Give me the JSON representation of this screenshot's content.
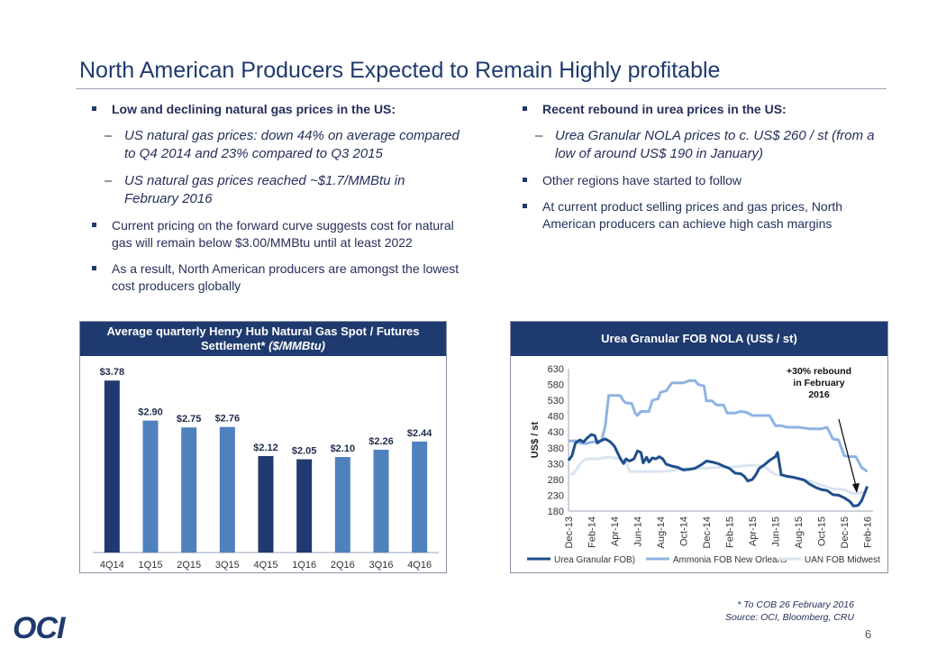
{
  "title": "North American Producers Expected to Remain Highly profitable",
  "left": {
    "b1": "Low and declining natural gas prices in the US:",
    "s1": "US natural gas prices: down 44% on average compared to Q4 2014 and 23% compared to Q3 2015",
    "s2": "US natural gas prices reached ~$1.7/MMBtu in February 2016",
    "b2": "Current pricing on the forward curve suggests cost for natural gas will remain below $3.00/MMBtu until at least 2022",
    "b3": "As a result, North American producers are amongst the lowest cost producers globally"
  },
  "right": {
    "b1": "Recent rebound in urea prices in the US:",
    "s1": "Urea Granular NOLA prices to c. US$ 260 / st (from a low of around US$ 190 in January)",
    "b2": "Other regions have started to follow",
    "b3": "At current product selling prices and gas prices, North American producers can achieve high cash margins"
  },
  "colors": {
    "navy": "#1f3a6e",
    "mid": "#4f81bd",
    "light": "#c6d9ee",
    "urea": "#1f4e8c",
    "ammonia": "#8eb4e3",
    "uan": "#d9e5f2"
  },
  "chart_data": [
    {
      "type": "bar",
      "title": "Average quarterly Henry Hub Natural Gas Spot / Futures Settlement*",
      "title_unit": "($/MMBtu)",
      "categories": [
        "4Q14",
        "1Q15",
        "2Q15",
        "3Q15",
        "4Q15",
        "1Q16",
        "2Q16",
        "3Q16",
        "4Q16"
      ],
      "values": [
        3.78,
        2.9,
        2.75,
        2.76,
        2.12,
        2.05,
        2.1,
        2.26,
        2.44
      ],
      "labels": [
        "$3.78",
        "$2.90",
        "$2.75",
        "$2.76",
        "$2.12",
        "$2.05",
        "$2.10",
        "$2.26",
        "$2.44"
      ],
      "bar_colors": [
        "navy",
        "mid",
        "mid",
        "mid",
        "navy",
        "navy",
        "mid",
        "mid",
        "mid"
      ],
      "ylim": [
        0,
        4.2
      ]
    },
    {
      "type": "line",
      "title": "Urea Granular FOB NOLA (US$ / st)",
      "ylabel": "US$ / st",
      "ylim": [
        180,
        630
      ],
      "yticks": [
        180,
        230,
        280,
        330,
        380,
        430,
        480,
        530,
        580,
        630
      ],
      "xlim": [
        0,
        26.5
      ],
      "xticks": [
        {
          "label": "Dec-13",
          "x": 0
        },
        {
          "label": "Feb-14",
          "x": 2
        },
        {
          "label": "Apr-14",
          "x": 4
        },
        {
          "label": "Jun-14",
          "x": 6
        },
        {
          "label": "Aug-14",
          "x": 8
        },
        {
          "label": "Oct-14",
          "x": 10
        },
        {
          "label": "Dec-14",
          "x": 12
        },
        {
          "label": "Feb-15",
          "x": 14
        },
        {
          "label": "Apr-15",
          "x": 16
        },
        {
          "label": "Jun-15",
          "x": 18
        },
        {
          "label": "Aug-15",
          "x": 20
        },
        {
          "label": "Oct-15",
          "x": 22
        },
        {
          "label": "Dec-15",
          "x": 24
        },
        {
          "label": "Feb-16",
          "x": 26
        }
      ],
      "annotation": "+30% rebound in February 2016",
      "series": [
        {
          "name": "Urea Granular FOB)",
          "color": "urea",
          "points": [
            [
              0,
              340
            ],
            [
              0.3,
              355
            ],
            [
              0.6,
              395
            ],
            [
              1,
              405
            ],
            [
              1.3,
              398
            ],
            [
              1.6,
              410
            ],
            [
              2,
              422
            ],
            [
              2.3,
              418
            ],
            [
              2.5,
              395
            ],
            [
              2.8,
              402
            ],
            [
              3.2,
              408
            ],
            [
              3.6,
              400
            ],
            [
              4,
              385
            ],
            [
              4.3,
              362
            ],
            [
              4.6,
              340
            ],
            [
              4.8,
              330
            ],
            [
              5,
              345
            ],
            [
              5.3,
              338
            ],
            [
              5.7,
              345
            ],
            [
              6,
              370
            ],
            [
              6.3,
              365
            ],
            [
              6.5,
              332
            ],
            [
              6.8,
              350
            ],
            [
              7,
              335
            ],
            [
              7.3,
              348
            ],
            [
              7.6,
              345
            ],
            [
              7.9,
              352
            ],
            [
              8.2,
              345
            ],
            [
              8.5,
              328
            ],
            [
              9,
              322
            ],
            [
              9.5,
              318
            ],
            [
              10,
              310
            ],
            [
              10.5,
              312
            ],
            [
              11,
              315
            ],
            [
              11.5,
              325
            ],
            [
              12,
              338
            ],
            [
              12.5,
              335
            ],
            [
              13,
              330
            ],
            [
              13.5,
              322
            ],
            [
              14,
              315
            ],
            [
              14.5,
              300
            ],
            [
              15,
              298
            ],
            [
              15.3,
              290
            ],
            [
              15.6,
              275
            ],
            [
              16,
              280
            ],
            [
              16.3,
              295
            ],
            [
              16.6,
              315
            ],
            [
              17,
              325
            ],
            [
              17.5,
              340
            ],
            [
              18,
              352
            ],
            [
              18.2,
              365
            ],
            [
              18.5,
              295
            ],
            [
              19,
              290
            ],
            [
              19.5,
              287
            ],
            [
              20,
              283
            ],
            [
              20.5,
              278
            ],
            [
              21,
              265
            ],
            [
              21.5,
              255
            ],
            [
              22,
              248
            ],
            [
              22.5,
              245
            ],
            [
              23,
              232
            ],
            [
              23.5,
              230
            ],
            [
              24,
              222
            ],
            [
              24.5,
              210
            ],
            [
              24.8,
              196
            ],
            [
              25.2,
              198
            ],
            [
              25.5,
              212
            ],
            [
              25.8,
              240
            ],
            [
              26,
              258
            ]
          ]
        },
        {
          "name": "Ammonia FOB New Orleans",
          "color": "ammonia",
          "points": [
            [
              0,
              402
            ],
            [
              0.8,
              402
            ],
            [
              1,
              395
            ],
            [
              1.5,
              393
            ],
            [
              2,
              398
            ],
            [
              2.5,
              400
            ],
            [
              2.9,
              405
            ],
            [
              3.2,
              450
            ],
            [
              3.5,
              545
            ],
            [
              4,
              545
            ],
            [
              4.5,
              545
            ],
            [
              4.8,
              528
            ],
            [
              5,
              522
            ],
            [
              5.5,
              520
            ],
            [
              5.8,
              490
            ],
            [
              6,
              482
            ],
            [
              6.3,
              495
            ],
            [
              7,
              495
            ],
            [
              7.3,
              530
            ],
            [
              7.8,
              535
            ],
            [
              8,
              555
            ],
            [
              8.5,
              560
            ],
            [
              9,
              585
            ],
            [
              9.5,
              585
            ],
            [
              10,
              585
            ],
            [
              10.5,
              592
            ],
            [
              11,
              592
            ],
            [
              11.3,
              580
            ],
            [
              11.8,
              575
            ],
            [
              12,
              528
            ],
            [
              12.5,
              528
            ],
            [
              12.9,
              515
            ],
            [
              13.5,
              515
            ],
            [
              13.8,
              490
            ],
            [
              14.5,
              490
            ],
            [
              15,
              495
            ],
            [
              15.5,
              492
            ],
            [
              16,
              482
            ],
            [
              16.5,
              482
            ],
            [
              17,
              482
            ],
            [
              17.5,
              482
            ],
            [
              18,
              450
            ],
            [
              18.5,
              450
            ],
            [
              19,
              445
            ],
            [
              20,
              445
            ],
            [
              21,
              440
            ],
            [
              22,
              440
            ],
            [
              22.5,
              445
            ],
            [
              23,
              408
            ],
            [
              23.5,
              405
            ],
            [
              24,
              355
            ],
            [
              24.5,
              352
            ],
            [
              25,
              352
            ],
            [
              25.5,
              318
            ],
            [
              26,
              305
            ]
          ]
        },
        {
          "name": "UAN FOB Midwest",
          "color": "uan",
          "points": [
            [
              0,
              295
            ],
            [
              0.5,
              300
            ],
            [
              1,
              330
            ],
            [
              1.5,
              345
            ],
            [
              2,
              345
            ],
            [
              2.5,
              345
            ],
            [
              3,
              348
            ],
            [
              3.5,
              350
            ],
            [
              4,
              348
            ],
            [
              4.5,
              345
            ],
            [
              5,
              340
            ],
            [
              5.3,
              305
            ],
            [
              6,
              305
            ],
            [
              7,
              305
            ],
            [
              8,
              305
            ],
            [
              9,
              308
            ],
            [
              10,
              315
            ],
            [
              11,
              315
            ],
            [
              12,
              315
            ],
            [
              13,
              318
            ],
            [
              14,
              318
            ],
            [
              15,
              322
            ],
            [
              16,
              325
            ],
            [
              17,
              322
            ],
            [
              17.8,
              300
            ],
            [
              18,
              295
            ],
            [
              19,
              292
            ],
            [
              20,
              282
            ],
            [
              21,
              275
            ],
            [
              22,
              262
            ],
            [
              23,
              250
            ],
            [
              24,
              248
            ],
            [
              24.5,
              238
            ],
            [
              25,
              235
            ],
            [
              25.5,
              238
            ],
            [
              26,
              240
            ]
          ]
        }
      ]
    }
  ],
  "footnote": {
    "line1": "* To COB 26 February 2016",
    "line2": "Source: OCI, Bloomberg, CRU"
  },
  "logo": "OCI",
  "page_number": "6"
}
